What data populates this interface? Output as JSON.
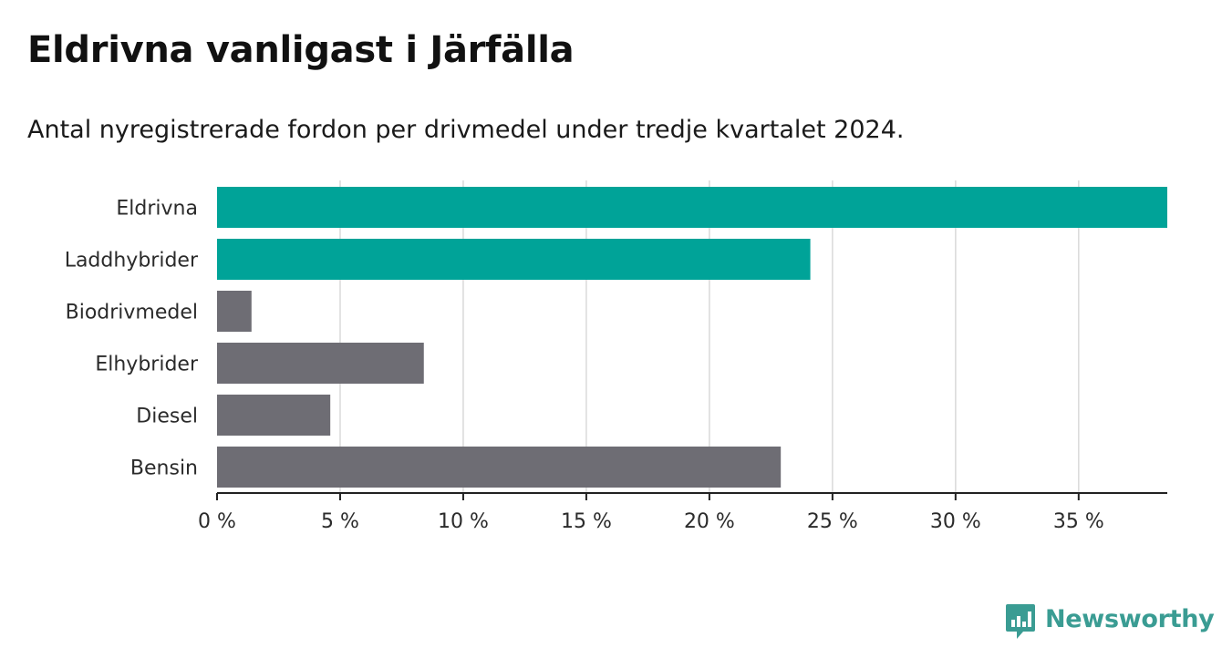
{
  "header": {
    "title": "Eldrivna vanligast i Järfälla",
    "subtitle": "Antal nyregistrerade fordon per drivmedel under tredje kvartalet 2024."
  },
  "brand": {
    "name": "Newsworthy",
    "icon": "newsworthy-logo-icon",
    "color": "#3a9c93"
  },
  "colors": {
    "highlight": "#00a398",
    "default": "#6e6d74",
    "grid": "#d9d9d9",
    "axis": "#222222"
  },
  "chart_data": {
    "type": "bar",
    "orientation": "horizontal",
    "title": "Eldrivna vanligast i Järfälla",
    "subtitle": "Antal nyregistrerade fordon per drivmedel under tredje kvartalet 2024.",
    "xlabel": "",
    "ylabel": "",
    "categories": [
      "Eldrivna",
      "Laddhybrider",
      "Biodrivmedel",
      "Elhybrider",
      "Diesel",
      "Bensin"
    ],
    "values": [
      38.6,
      24.1,
      1.4,
      8.4,
      4.6,
      22.9
    ],
    "highlighted": [
      true,
      true,
      false,
      false,
      false,
      false
    ],
    "xlim": [
      0,
      38.6
    ],
    "ticks": [
      0,
      5,
      10,
      15,
      20,
      25,
      30,
      35
    ],
    "tick_labels": [
      "0 %",
      "5 %",
      "10 %",
      "15 %",
      "20 %",
      "25 %",
      "30 %",
      "35 %"
    ],
    "grid": true
  }
}
